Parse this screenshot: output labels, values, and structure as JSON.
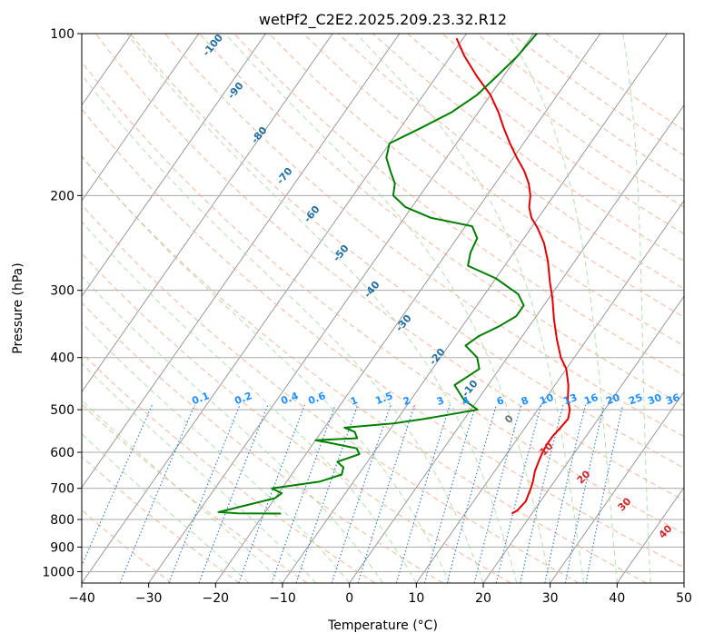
{
  "chart_data": {
    "type": "line",
    "title": "wetPf2_C2E2.2025.209.23.32.R12",
    "xlabel": "Temperature (°C)",
    "ylabel": "Pressure (hPa)",
    "xlim": [
      -40,
      50
    ],
    "ylim": [
      1050,
      100
    ],
    "y_scale": "log",
    "x_ticks": [
      "−40",
      "−30",
      "−20",
      "−10",
      "0",
      "10",
      "20",
      "30",
      "40",
      "50"
    ],
    "y_ticks": [
      "100",
      "200",
      "300",
      "400",
      "500",
      "600",
      "700",
      "800",
      "900",
      "1000"
    ],
    "grid": true,
    "series": [
      {
        "key": "temperature",
        "color": "#e60000",
        "points": [
          [
            17.0,
            780
          ],
          [
            17.5,
            770
          ],
          [
            17.8,
            740
          ],
          [
            17.2,
            700
          ],
          [
            16.8,
            680
          ],
          [
            16.0,
            650
          ],
          [
            15.5,
            620
          ],
          [
            15.2,
            600
          ],
          [
            15.0,
            580
          ],
          [
            15.0,
            560
          ],
          [
            15.3,
            540
          ],
          [
            15.5,
            520
          ],
          [
            14.8,
            500
          ],
          [
            13.5,
            480
          ],
          [
            12.0,
            450
          ],
          [
            10.0,
            420
          ],
          [
            8.0,
            400
          ],
          [
            5.5,
            370
          ],
          [
            3.0,
            340
          ],
          [
            0.5,
            310
          ],
          [
            -1.5,
            290
          ],
          [
            -4.0,
            265
          ],
          [
            -6.5,
            245
          ],
          [
            -9.0,
            230
          ],
          [
            -11.0,
            220
          ],
          [
            -12.5,
            210
          ],
          [
            -13.5,
            200
          ],
          [
            -15.0,
            190
          ],
          [
            -17.0,
            180
          ],
          [
            -19.5,
            170
          ],
          [
            -22.0,
            160
          ],
          [
            -24.5,
            150
          ],
          [
            -27.0,
            140
          ],
          [
            -30.0,
            130
          ],
          [
            -34.0,
            120
          ],
          [
            -38.0,
            110
          ],
          [
            -41.0,
            102
          ]
        ]
      },
      {
        "key": "dewpoint",
        "color": "#008000",
        "points": [
          [
            -17.5,
            780
          ],
          [
            -24.0,
            779
          ],
          [
            -27.0,
            775
          ],
          [
            -20.0,
            730
          ],
          [
            -19.5,
            715
          ],
          [
            -21.5,
            700
          ],
          [
            -15.0,
            680
          ],
          [
            -12.5,
            660
          ],
          [
            -13.0,
            640
          ],
          [
            -14.5,
            625
          ],
          [
            -12.0,
            605
          ],
          [
            -13.0,
            590
          ],
          [
            -18.0,
            575
          ],
          [
            -20.0,
            570
          ],
          [
            -14.0,
            565
          ],
          [
            -15.0,
            550
          ],
          [
            -17.0,
            540
          ],
          [
            -10.0,
            530
          ],
          [
            -6.0,
            520
          ],
          [
            -2.5,
            510
          ],
          [
            1.0,
            500
          ],
          [
            -2.0,
            480
          ],
          [
            -5.0,
            450
          ],
          [
            -3.0,
            420
          ],
          [
            -4.5,
            400
          ],
          [
            -7.5,
            380
          ],
          [
            -6.5,
            365
          ],
          [
            -4.5,
            350
          ],
          [
            -3.0,
            335
          ],
          [
            -3.0,
            320
          ],
          [
            -5.0,
            305
          ],
          [
            -10.0,
            285
          ],
          [
            -15.5,
            270
          ],
          [
            -16.5,
            255
          ],
          [
            -17.0,
            240
          ],
          [
            -19.0,
            228
          ],
          [
            -26.0,
            220
          ],
          [
            -31.0,
            210
          ],
          [
            -34.0,
            200
          ],
          [
            -35.0,
            190
          ],
          [
            -37.0,
            180
          ],
          [
            -39.0,
            170
          ],
          [
            -40.0,
            160
          ],
          [
            -37.0,
            150
          ],
          [
            -34.0,
            140
          ],
          [
            -32.0,
            130
          ],
          [
            -31.0,
            120
          ],
          [
            -30.0,
            110
          ],
          [
            -29.5,
            100
          ]
        ]
      }
    ],
    "dry_adiabat_labels": [
      "-100",
      "-90",
      "-80",
      "-70",
      "-60",
      "-50",
      "-40",
      "-30",
      "-20",
      "-10"
    ],
    "moist_adiabat_labels": [
      "0",
      "10",
      "20",
      "30",
      "40"
    ],
    "mixing_ratio_labels": [
      "0.1",
      "0.2",
      "0.4",
      "0.6",
      "1",
      "1.5",
      "2",
      "3",
      "4",
      "6",
      "8",
      "10",
      "13",
      "16",
      "20",
      "25",
      "30",
      "36"
    ],
    "colors": {
      "isotherm": "#999999",
      "isobar": "#aaaaaa",
      "dry_adiabat": "#f4a582",
      "moist_adiabat": "#a1d99b",
      "mixing_ratio": "#1f78d1",
      "dry_label": "#1f6fa8",
      "moist_label": "#d62728",
      "mixing_label": "#1e90ff"
    }
  }
}
